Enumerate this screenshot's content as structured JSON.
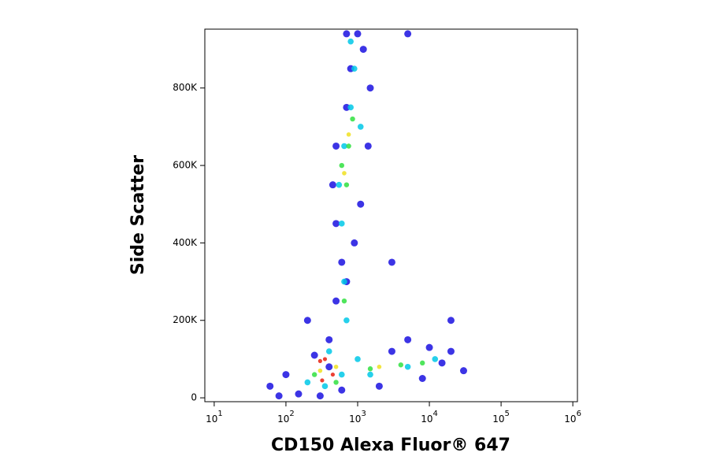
{
  "chart_data": {
    "type": "scatter",
    "xlabel": "CD150 Alexa Fluor® 647",
    "ylabel": "Side Scatter",
    "xscale": "log",
    "xlim": [
      7.4,
      1160000
    ],
    "xticks": [
      {
        "value": 10,
        "label": "10",
        "exponent": "1"
      },
      {
        "value": 100,
        "label": "10",
        "exponent": "2"
      },
      {
        "value": 1000,
        "label": "10",
        "exponent": "3"
      },
      {
        "value": 10000,
        "label": "10",
        "exponent": "4"
      },
      {
        "value": 100000,
        "label": "10",
        "exponent": "5"
      },
      {
        "value": 1000000,
        "label": "10",
        "exponent": "6"
      }
    ],
    "ylim": [
      -10000,
      952000
    ],
    "yticks": [
      0,
      {
        "value": 200000,
        "label": "200K"
      },
      {
        "value": 400000,
        "label": "400K"
      },
      {
        "value": 600000,
        "label": "600K"
      },
      {
        "value": 800000,
        "label": "800K"
      }
    ],
    "series": [
      {
        "color": "#1a10e0",
        "x": [
          150,
          300,
          600,
          2000,
          8000,
          15000,
          20000,
          100,
          60,
          400,
          500,
          600,
          500,
          450,
          500,
          700,
          800,
          1200,
          1500,
          1400,
          1100,
          900,
          700,
          400,
          250,
          3000,
          10000,
          5000,
          1000,
          700,
          5000,
          20000,
          3000,
          30000,
          80,
          200
        ],
        "y": [
          10000,
          5000,
          20000,
          30000,
          50000,
          90000,
          120000,
          60000,
          30000,
          150000,
          250000,
          350000,
          450000,
          550000,
          650000,
          750000,
          850000,
          900000,
          800000,
          650000,
          500000,
          400000,
          300000,
          80000,
          110000,
          120000,
          130000,
          150000,
          940000,
          940000,
          940000,
          200000,
          350000,
          70000,
          5000,
          200000
        ]
      },
      {
        "color": "#00c8e8",
        "x": [
          200,
          350,
          600,
          1500,
          5000,
          12000,
          700,
          650,
          600,
          550,
          650,
          800,
          900,
          1100,
          400,
          1000,
          800
        ],
        "y": [
          40000,
          30000,
          60000,
          60000,
          80000,
          100000,
          200000,
          300000,
          450000,
          550000,
          650000,
          750000,
          850000,
          700000,
          120000,
          100000,
          920000
        ]
      },
      {
        "color": "#30e040",
        "x": [
          250,
          500,
          1500,
          4000,
          8000,
          600,
          750,
          850,
          700,
          650
        ],
        "y": [
          60000,
          40000,
          75000,
          85000,
          90000,
          600000,
          650000,
          720000,
          550000,
          250000
        ]
      },
      {
        "color": "#f0e020",
        "x": [
          300,
          500,
          2000,
          750,
          650
        ],
        "y": [
          70000,
          80000,
          80000,
          680000,
          580000
        ]
      },
      {
        "color": "#e82010",
        "x": [
          300,
          320,
          450,
          350
        ],
        "y": [
          95000,
          45000,
          60000,
          100000
        ]
      }
    ]
  }
}
